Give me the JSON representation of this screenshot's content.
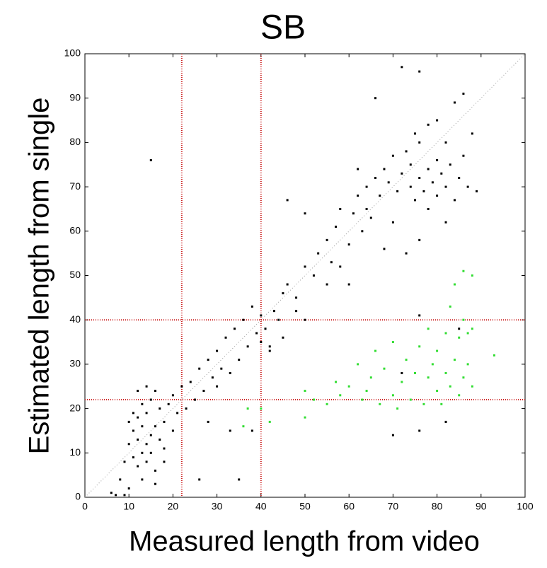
{
  "chart_data": {
    "type": "scatter",
    "title": "SB",
    "xlabel": "Measured length from video",
    "ylabel": "Estimated length from single",
    "xlim": [
      0,
      100
    ],
    "ylim": [
      0,
      100
    ],
    "xticks": [
      0,
      10,
      20,
      30,
      40,
      50,
      60,
      70,
      80,
      90,
      100
    ],
    "yticks": [
      0,
      10,
      20,
      30,
      40,
      50,
      60,
      70,
      80,
      90,
      100
    ],
    "vlines": [
      22,
      40
    ],
    "hlines": [
      22,
      40
    ],
    "ref_line_color": "#cc2222",
    "diagonal": true,
    "series": [
      {
        "color": "#000000",
        "x": [
          6,
          7,
          9,
          8,
          10,
          9,
          10,
          11,
          11,
          12,
          12,
          12,
          13,
          13,
          13,
          13,
          14,
          14,
          14,
          15,
          15,
          15,
          16,
          16,
          16,
          17,
          17,
          18,
          18,
          19,
          20,
          20,
          21,
          22,
          11,
          12,
          10,
          14,
          16,
          18,
          23,
          24,
          25,
          26,
          27,
          28,
          29,
          30,
          30,
          31,
          32,
          33,
          34,
          35,
          36,
          37,
          38,
          39,
          40,
          40,
          41,
          42,
          43,
          44,
          45,
          46,
          48,
          50,
          52,
          53,
          55,
          56,
          57,
          58,
          60,
          61,
          62,
          63,
          64,
          65,
          66,
          67,
          15,
          46,
          50,
          26,
          35,
          33,
          28,
          38,
          70,
          76,
          82,
          76,
          85,
          72,
          68,
          69,
          70,
          71,
          72,
          73,
          74,
          74,
          75,
          76,
          76,
          77,
          78,
          78,
          79,
          80,
          80,
          81,
          82,
          82,
          83,
          84,
          85,
          86,
          87,
          88,
          89,
          75,
          78,
          70,
          73,
          76,
          82,
          66,
          72,
          76,
          86,
          84,
          80,
          62,
          64,
          68,
          60,
          58,
          55,
          50,
          48,
          45,
          42
        ],
        "values": [
          1,
          0.5,
          0.5,
          4,
          2,
          8,
          12,
          15,
          9,
          18,
          13,
          7,
          10,
          16,
          21,
          4,
          12,
          19,
          8,
          14,
          22,
          10,
          16,
          24,
          6,
          13,
          20,
          17,
          11,
          21,
          15,
          23,
          19,
          25,
          19,
          24,
          17,
          25,
          3,
          8,
          20,
          26,
          22,
          29,
          24,
          31,
          27,
          33,
          25,
          29,
          36,
          28,
          38,
          31,
          40,
          34,
          43,
          37,
          41,
          35,
          38,
          34,
          42,
          40,
          46,
          48,
          45,
          52,
          50,
          55,
          58,
          53,
          61,
          65,
          57,
          64,
          68,
          60,
          70,
          63,
          72,
          68,
          76,
          67,
          64,
          4,
          4,
          15,
          17,
          15,
          14,
          15,
          17,
          41,
          38,
          28,
          74,
          71,
          77,
          69,
          73,
          78,
          70,
          75,
          67,
          72,
          80,
          69,
          74,
          65,
          71,
          76,
          68,
          73,
          70,
          80,
          75,
          67,
          72,
          77,
          70,
          82,
          69,
          82,
          84,
          62,
          55,
          58,
          62,
          90,
          97,
          96,
          91,
          89,
          85,
          74,
          65,
          56,
          48,
          52,
          48,
          40,
          42,
          36,
          33
        ]
      },
      {
        "color": "#33dd33",
        "x": [
          50,
          50,
          52,
          55,
          57,
          58,
          60,
          62,
          63,
          65,
          66,
          67,
          68,
          70,
          70,
          72,
          73,
          74,
          75,
          76,
          77,
          78,
          78,
          79,
          80,
          80,
          81,
          82,
          82,
          83,
          83,
          84,
          84,
          85,
          85,
          86,
          86,
          86,
          87,
          87,
          88,
          88,
          88,
          93,
          36,
          37,
          42,
          40,
          64,
          71
        ],
        "values": [
          18,
          24,
          22,
          21,
          26,
          23,
          25,
          30,
          22,
          27,
          33,
          21,
          29,
          23,
          35,
          26,
          31,
          22,
          28,
          34,
          21,
          27,
          38,
          30,
          24,
          33,
          21,
          28,
          37,
          43,
          25,
          31,
          48,
          23,
          36,
          27,
          40,
          51,
          30,
          37,
          25,
          50,
          38,
          32,
          16,
          20,
          17,
          20,
          24,
          20
        ]
      }
    ]
  }
}
